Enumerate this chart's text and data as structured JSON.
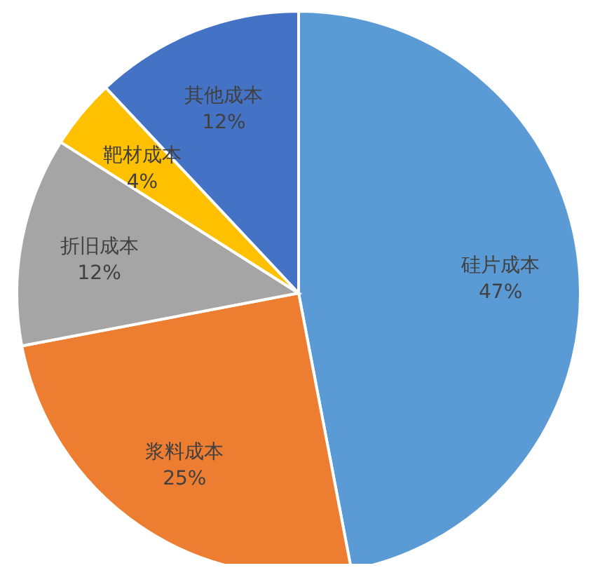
{
  "chart_data": {
    "type": "pie",
    "categories": [
      "硅片成本",
      "浆料成本",
      "折旧成本",
      "靶材成本",
      "其他成本"
    ],
    "values": [
      47,
      25,
      12,
      4,
      12
    ],
    "value_labels": [
      "47%",
      "25%",
      "12%",
      "4%",
      "12%"
    ],
    "colors": [
      "#5b9bd5",
      "#ed7d31",
      "#a5a5a5",
      "#ffc000",
      "#4472c4"
    ],
    "legend": false
  }
}
